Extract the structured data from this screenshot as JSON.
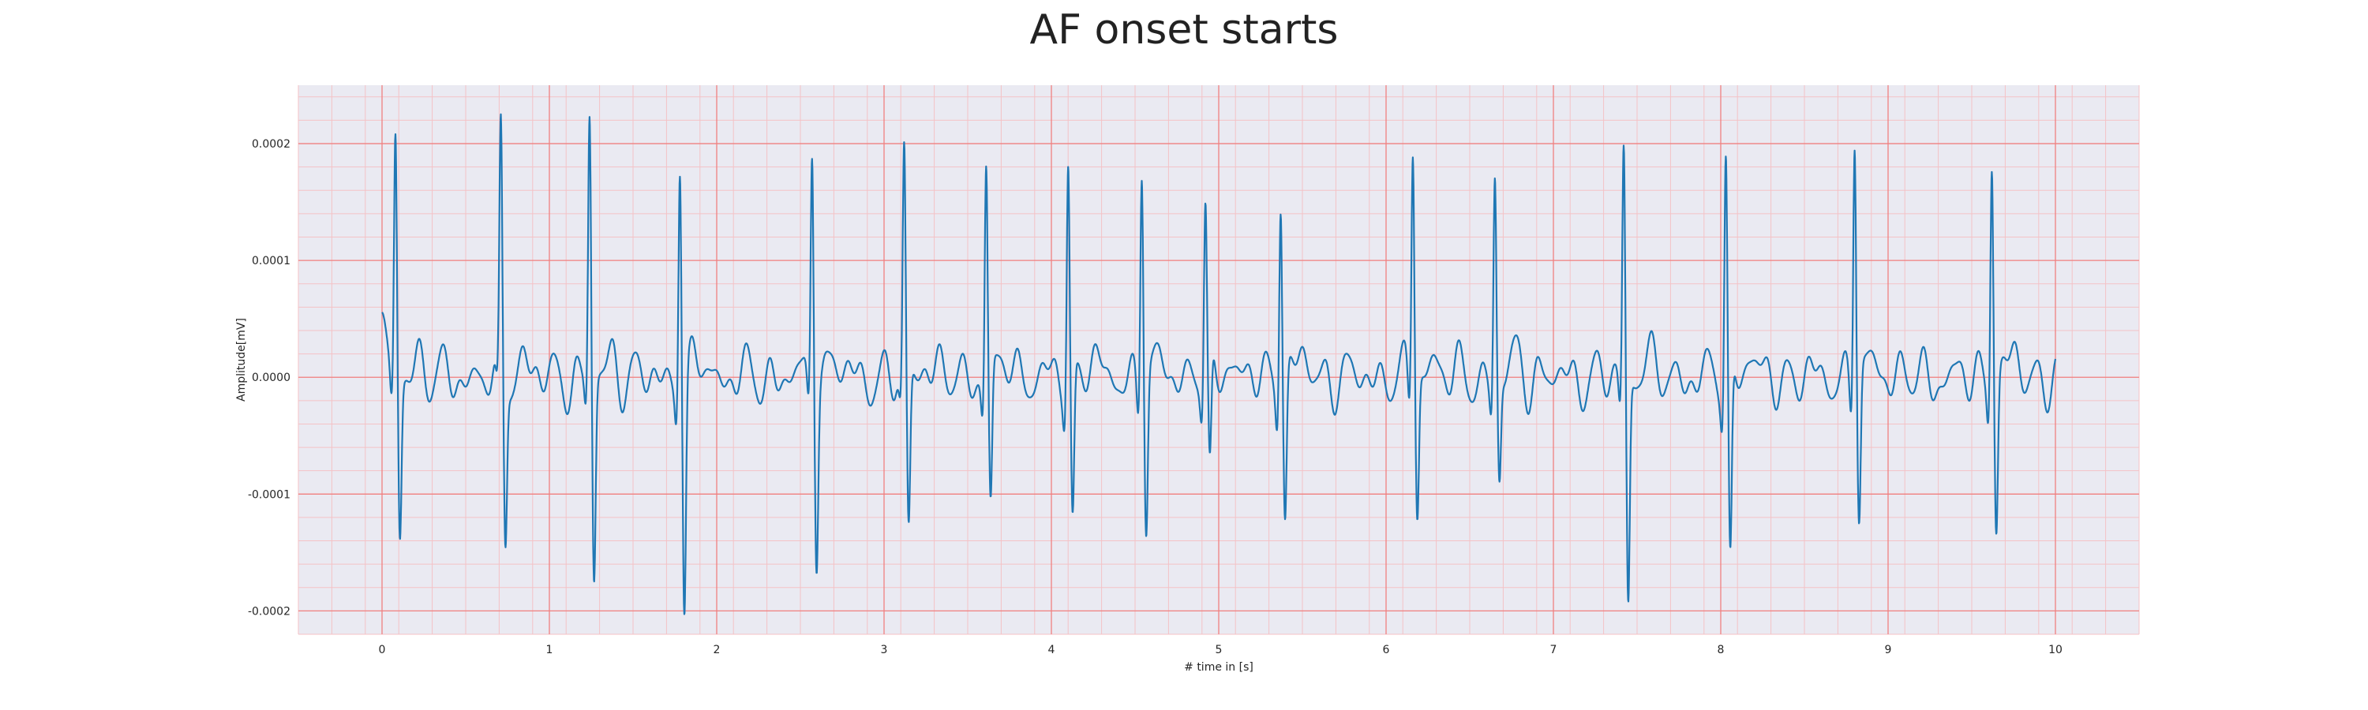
{
  "chart_data": {
    "type": "line",
    "title": "AF onset starts",
    "xlabel": "# time in [s]",
    "ylabel": "Amplitude[mV]",
    "xlim": [
      -0.5,
      10.5
    ],
    "ylim": [
      -0.00022,
      0.00025
    ],
    "x_ticks": [
      0,
      1,
      2,
      3,
      4,
      5,
      6,
      7,
      8,
      9,
      10
    ],
    "x_tick_labels": [
      "0",
      "1",
      "2",
      "3",
      "4",
      "5",
      "6",
      "7",
      "8",
      "9",
      "10"
    ],
    "y_ticks": [
      -0.0002,
      -0.0001,
      0.0,
      0.0001,
      0.0002
    ],
    "y_tick_labels": [
      "-0.0002",
      "-0.0001",
      "0.0000",
      "0.0001",
      "0.0002"
    ],
    "grid": true,
    "legend": "none",
    "colors": {
      "line": "#1f77b4",
      "plot_background": "#eaeaf2",
      "major_grid": "#f08080",
      "minor_grid": "#f4c2c6"
    },
    "series": [
      {
        "beats": [
          {
            "t": 0.08,
            "r": 0.000212,
            "s": -0.000134
          },
          {
            "t": 0.71,
            "r": 0.000209,
            "s": -0.000137
          },
          {
            "t": 1.24,
            "r": 0.000228,
            "s": -0.000175
          },
          {
            "t": 1.78,
            "r": 0.000197,
            "s": -0.0002
          },
          {
            "t": 2.57,
            "r": 0.000211,
            "s": -0.00014
          },
          {
            "t": 3.12,
            "r": 0.000194,
            "s": -0.000134
          },
          {
            "t": 3.61,
            "r": 0.000193,
            "s": -0.000115
          },
          {
            "t": 4.1,
            "r": 0.000193,
            "s": -0.000128
          },
          {
            "t": 4.54,
            "r": 0.000197,
            "s": -0.000131
          },
          {
            "t": 4.92,
            "r": 0.000152,
            "s": -9.5e-05
          },
          {
            "t": 5.37,
            "r": 0.000173,
            "s": -0.000119
          },
          {
            "t": 6.16,
            "r": 0.000211,
            "s": -0.000114
          },
          {
            "t": 6.65,
            "r": 0.000175,
            "s": -9.1e-05
          },
          {
            "t": 7.42,
            "r": 0.000203,
            "s": -0.000196
          },
          {
            "t": 8.03,
            "r": 0.000199,
            "s": -0.000167
          },
          {
            "t": 8.8,
            "r": 0.000222,
            "s": -0.000124
          },
          {
            "t": 9.62,
            "r": 0.000205,
            "s": -0.000124
          }
        ],
        "baseline_end": 10.0
      }
    ]
  }
}
